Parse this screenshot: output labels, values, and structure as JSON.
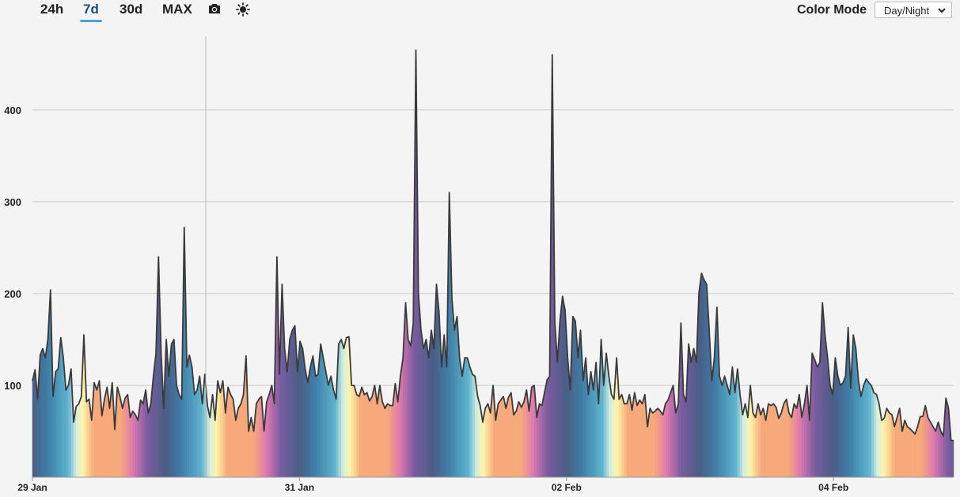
{
  "toolbar": {
    "ranges": [
      "24h",
      "7d",
      "30d",
      "MAX"
    ],
    "active_range": "7d",
    "color_mode_label": "Color Mode",
    "color_mode_value": "Day/Night"
  },
  "chart_data": {
    "type": "area",
    "title": "",
    "xlabel": "",
    "ylabel": "",
    "ylim": [
      0,
      480
    ],
    "yticks": [
      100,
      200,
      300,
      400
    ],
    "xlim": [
      0,
      6.9
    ],
    "xticks": [
      {
        "pos": 0,
        "label": "29 Jan"
      },
      {
        "pos": 2,
        "label": "31 Jan"
      },
      {
        "pos": 4,
        "label": "02 Feb"
      },
      {
        "pos": 6,
        "label": "04 Feb"
      }
    ],
    "grid": true,
    "fill_mode": "Day/Night",
    "colors": {
      "day_peak": "#fff4a8",
      "morning": "#f6a97a",
      "dawn": "#e07ab0",
      "night": "#7a5ca0",
      "late_night": "#4a5d85",
      "evening_mid": "#3f7fa8",
      "evening": "#5fb4cf",
      "dusk_light": "#d8efe0"
    },
    "series": [
      {
        "values": [
          105,
          117,
          85,
          133,
          140,
          130,
          150,
          204,
          88,
          115,
          118,
          152,
          130,
          95,
          100,
          118,
          60,
          77,
          80,
          88,
          155,
          82,
          85,
          62,
          103,
          95,
          105,
          67,
          85,
          98,
          75,
          103,
          52,
          98,
          88,
          75,
          86,
          90,
          65,
          72,
          68,
          62,
          84,
          80,
          95,
          70,
          80,
          110,
          135,
          240,
          135,
          75,
          150,
          110,
          145,
          150,
          100,
          90,
          85,
          272,
          120,
          133,
          120,
          90,
          95,
          110,
          80,
          112,
          78,
          65,
          90,
          62,
          105,
          92,
          105,
          70,
          98,
          90,
          85,
          62,
          75,
          80,
          90,
          132,
          50,
          65,
          50,
          80,
          85,
          88,
          50,
          82,
          90,
          100,
          80,
          240,
          112,
          210,
          140,
          115,
          150,
          160,
          165,
          115,
          148,
          140,
          118,
          103,
          120,
          132,
          110,
          112,
          145,
          130,
          115,
          100,
          110,
          95,
          85,
          145,
          150,
          140,
          152,
          153,
          100,
          100,
          90,
          88,
          98,
          90,
          92,
          83,
          88,
          100,
          80,
          100,
          82,
          75,
          80,
          78,
          78,
          102,
          82,
          110,
          130,
          190,
          150,
          143,
          168,
          465,
          200,
          160,
          140,
          150,
          130,
          160,
          140,
          210,
          180,
          120,
          155,
          120,
          310,
          195,
          160,
          175,
          130,
          110,
          130,
          130,
          120,
          112,
          110,
          88,
          78,
          60,
          75,
          80,
          70,
          100,
          62,
          80,
          84,
          88,
          75,
          87,
          92,
          68,
          72,
          82,
          76,
          82,
          95,
          72,
          98,
          100,
          65,
          80,
          78,
          92,
          106,
          110,
          460,
          170,
          125,
          170,
          197,
          182,
          130,
          95,
          175,
          170,
          130,
          160,
          105,
          130,
          90,
          115,
          95,
          125,
          80,
          150,
          100,
          135,
          110,
          90,
          85,
          130,
          85,
          90,
          80,
          80,
          90,
          73,
          92,
          78,
          84,
          80,
          90,
          55,
          75,
          70,
          72,
          75,
          72,
          68,
          80,
          84,
          92,
          100,
          70,
          80,
          168,
          90,
          82,
          145,
          125,
          140,
          125,
          200,
          222,
          215,
          210,
          160,
          105,
          130,
          185,
          110,
          100,
          110,
          100,
          90,
          120,
          92,
          118,
          90,
          68,
          80,
          65,
          100,
          70,
          65,
          80,
          68,
          75,
          62,
          80,
          78,
          80,
          76,
          64,
          70,
          80,
          85,
          70,
          65,
          80,
          75,
          90,
          65,
          80,
          100,
          62,
          135,
          128,
          120,
          125,
          190,
          155,
          130,
          100,
          90,
          130,
          110,
          100,
          103,
          110,
          163,
          97,
          155,
          140,
          105,
          88,
          100,
          107,
          103,
          100,
          92,
          90,
          80,
          62,
          64,
          75,
          70,
          68,
          55,
          65,
          75,
          50,
          62,
          55,
          53,
          50,
          47,
          55,
          66,
          66,
          78,
          65,
          60,
          55,
          50,
          60,
          50,
          45,
          86,
          75,
          40,
          40
        ]
      }
    ]
  }
}
